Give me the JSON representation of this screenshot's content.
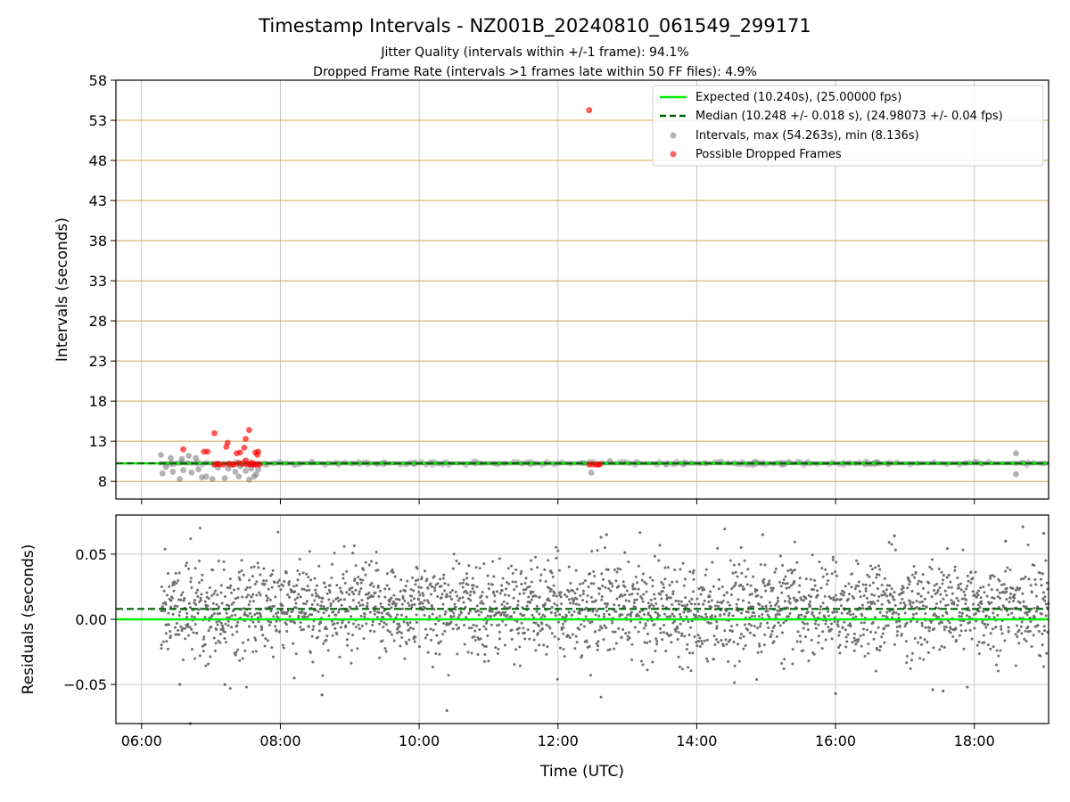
{
  "figure": {
    "title": "Timestamp Intervals - NZ001B_20240810_061549_299171",
    "subtitle_jitter": "Jitter Quality (intervals within +/-1 frame): 94.1%",
    "subtitle_dropped": "Dropped Frame Rate (intervals >1 frames late within 50 FF files): 4.9%"
  },
  "colors": {
    "expected": "#00ee00",
    "median": "#006400",
    "intervals": "#808080",
    "dropped": "#ff0000",
    "hgrid_top": "#c8a850",
    "grid": "#c8c8c8"
  },
  "chart_data": [
    {
      "type": "scatter",
      "panel": "intervals",
      "xlabel": "",
      "ylabel": "Intervals (seconds)",
      "x_unit": "hours UTC",
      "xlim": [
        5.63,
        19.07
      ],
      "ylim": [
        5.8,
        58.0
      ],
      "yticks": [
        8,
        13,
        18,
        23,
        28,
        33,
        38,
        43,
        48,
        53,
        58
      ],
      "grid": true,
      "legend_position": "upper right",
      "legend": [
        {
          "key": "expected",
          "label": "Expected (10.240s), (25.00000 fps)",
          "style": "solid-line"
        },
        {
          "key": "median",
          "label": "Median (10.248 +/- 0.018 s), (24.98073 +/- 0.04 fps)",
          "style": "dashed-line"
        },
        {
          "key": "intervals",
          "label": "Intervals, max (54.263s), min (8.136s)",
          "style": "marker"
        },
        {
          "key": "dropped",
          "label": "Possible Dropped Frames",
          "style": "marker"
        }
      ],
      "expected_value": 10.24,
      "median_value": 10.248,
      "intervals_band": {
        "x_start": 6.25,
        "x_end": 19.07,
        "y_low": 10.0,
        "y_high": 10.5
      },
      "interval_outliers": [
        [
          6.28,
          11.3
        ],
        [
          6.3,
          9.0
        ],
        [
          6.35,
          9.8
        ],
        [
          6.42,
          10.9
        ],
        [
          6.45,
          9.2
        ],
        [
          6.55,
          8.3
        ],
        [
          6.58,
          10.8
        ],
        [
          6.6,
          9.4
        ],
        [
          6.68,
          11.2
        ],
        [
          6.72,
          9.1
        ],
        [
          6.78,
          10.9
        ],
        [
          6.82,
          9.5
        ],
        [
          6.87,
          8.5
        ],
        [
          6.93,
          8.6
        ],
        [
          7.02,
          8.3
        ],
        [
          7.1,
          9.7
        ],
        [
          7.2,
          8.4
        ],
        [
          7.25,
          9.6
        ],
        [
          7.35,
          9.2
        ],
        [
          7.4,
          8.6
        ],
        [
          7.42,
          9.9
        ],
        [
          7.5,
          9.3
        ],
        [
          7.55,
          8.2
        ],
        [
          7.58,
          9.6
        ],
        [
          7.62,
          8.6
        ],
        [
          7.65,
          8.9
        ],
        [
          7.68,
          9.5
        ],
        [
          12.48,
          9.1
        ],
        [
          12.75,
          10.5
        ],
        [
          16.6,
          10.4
        ],
        [
          18.6,
          11.5
        ],
        [
          18.6,
          8.9
        ]
      ],
      "dropped_frames": [
        [
          6.6,
          12.0
        ],
        [
          6.9,
          11.7
        ],
        [
          6.95,
          11.7
        ],
        [
          7.05,
          14.0
        ],
        [
          7.05,
          10.1
        ],
        [
          7.1,
          10.2
        ],
        [
          7.12,
          10.1
        ],
        [
          7.18,
          10.1
        ],
        [
          7.22,
          12.3
        ],
        [
          7.24,
          12.8
        ],
        [
          7.26,
          10.2
        ],
        [
          7.3,
          10.1
        ],
        [
          7.33,
          10.1
        ],
        [
          7.37,
          11.5
        ],
        [
          7.4,
          10.3
        ],
        [
          7.42,
          11.6
        ],
        [
          7.45,
          10.2
        ],
        [
          7.48,
          12.2
        ],
        [
          7.5,
          13.3
        ],
        [
          7.5,
          10.6
        ],
        [
          7.52,
          10.1
        ],
        [
          7.55,
          14.4
        ],
        [
          7.56,
          10.2
        ],
        [
          7.58,
          10.1
        ],
        [
          7.6,
          10.3
        ],
        [
          7.62,
          10.1
        ],
        [
          7.64,
          11.6
        ],
        [
          7.65,
          10.1
        ],
        [
          7.67,
          11.3
        ],
        [
          7.68,
          11.7
        ],
        [
          7.7,
          10.1
        ],
        [
          12.45,
          10.1
        ],
        [
          12.5,
          10.1
        ],
        [
          12.55,
          10.1
        ],
        [
          12.58,
          10.1
        ],
        [
          12.6,
          10.1
        ],
        [
          12.45,
          54.26
        ]
      ]
    },
    {
      "type": "scatter",
      "panel": "residuals",
      "xlabel": "Time (UTC)",
      "ylabel": "Residuals (seconds)",
      "x_unit": "hours UTC",
      "xlim": [
        5.63,
        19.07
      ],
      "ylim": [
        -0.08,
        0.08
      ],
      "xticks": [
        "06:00",
        "08:00",
        "10:00",
        "12:00",
        "14:00",
        "16:00",
        "18:00"
      ],
      "yticks": [
        0.05,
        0.0,
        -0.05
      ],
      "ytick_labels": [
        "0.05",
        "0.00",
        "−0.05"
      ],
      "grid": true,
      "expected_value": 0.0,
      "median_value": 0.008,
      "residuals_summary": {
        "x_start": 6.28,
        "x_end": 19.07,
        "center": 0.008,
        "std": 0.018
      },
      "residual_extremes": [
        [
          6.55,
          -0.05
        ],
        [
          6.7,
          -0.08
        ],
        [
          7.2,
          -0.05
        ],
        [
          8.2,
          -0.045
        ],
        [
          8.6,
          -0.058
        ],
        [
          10.4,
          -0.07
        ],
        [
          12.7,
          0.065
        ],
        [
          12.62,
          0.063
        ],
        [
          14.95,
          0.065
        ],
        [
          16.0,
          -0.057
        ],
        [
          16.85,
          0.064
        ],
        [
          17.4,
          -0.054
        ],
        [
          17.55,
          -0.055
        ],
        [
          17.9,
          -0.052
        ],
        [
          18.7,
          0.071
        ],
        [
          18.45,
          0.06
        ],
        [
          19.0,
          0.066
        ]
      ]
    }
  ]
}
